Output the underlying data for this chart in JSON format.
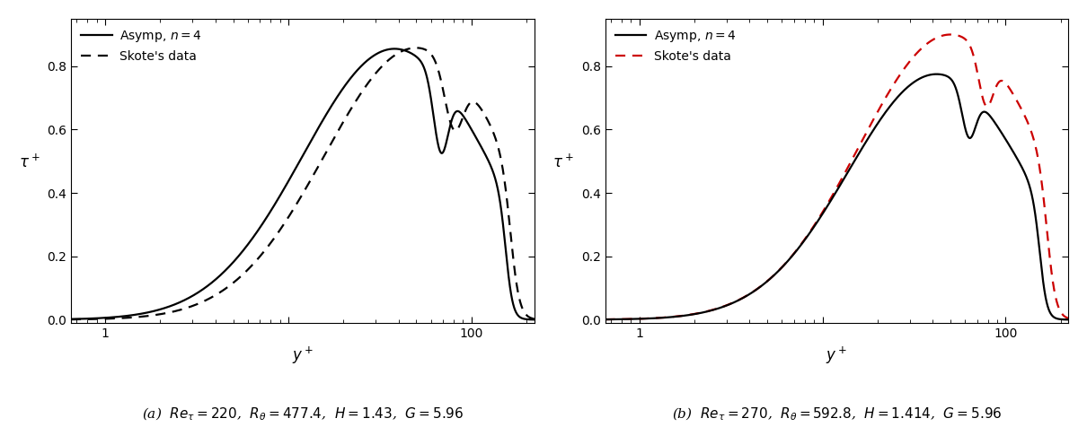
{
  "fig_width": 12.1,
  "fig_height": 4.76,
  "background_color": "#ffffff",
  "subplot_captions": [
    "(a)  $Re_\\tau = 220$,  $R_\\theta = 477.4$,  $H = 1.43$,  $G = 5.96$",
    "(b)  $Re_\\tau = 270$,  $R_\\theta = 592.8$,  $H = 1.414$,  $G = 5.96$"
  ],
  "ylabel": "$\\tau^+$",
  "xlabel": "$y^+$",
  "xlim_log": [
    0.65,
    220
  ],
  "ylim": [
    -0.01,
    0.95
  ],
  "yticks": [
    0,
    0.2,
    0.4,
    0.6,
    0.8
  ],
  "asymp_color": "#000000",
  "skote_color_left": "#000000",
  "skote_color_right": "#cc0000",
  "linewidth": 1.6,
  "caption_fontsize": 11
}
